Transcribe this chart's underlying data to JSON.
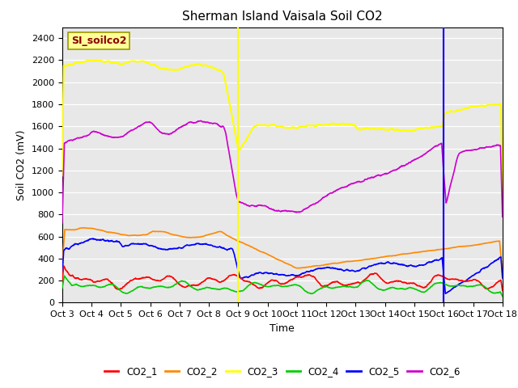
{
  "title": "Sherman Island Vaisala Soil CO2",
  "ylabel": "Soil CO2 (mV)",
  "xlabel": "Time",
  "subtitle_label": "SI_soilco2",
  "ylim": [
    0,
    2500
  ],
  "background_color": "#e8e8e8",
  "colors": {
    "CO2_1": "#ff0000",
    "CO2_2": "#ff8800",
    "CO2_3": "#ffff00",
    "CO2_4": "#00cc00",
    "CO2_5": "#0000ff",
    "CO2_6": "#cc00cc"
  },
  "x_tick_labels": [
    "Oct 3",
    "Oct 4",
    "Oct 5",
    "Oct 6",
    "Oct 7",
    "Oct 8",
    "Oct 9",
    "Oct 10",
    "Oct 11",
    "Oct 12",
    "Oct 13",
    "Oct 14",
    "Oct 15",
    "Oct 16",
    "Oct 17",
    "Oct 18"
  ],
  "vline_yellow": 6.0,
  "vline_purple": 13.0,
  "vline_blue": 13.0,
  "num_points": 2000
}
